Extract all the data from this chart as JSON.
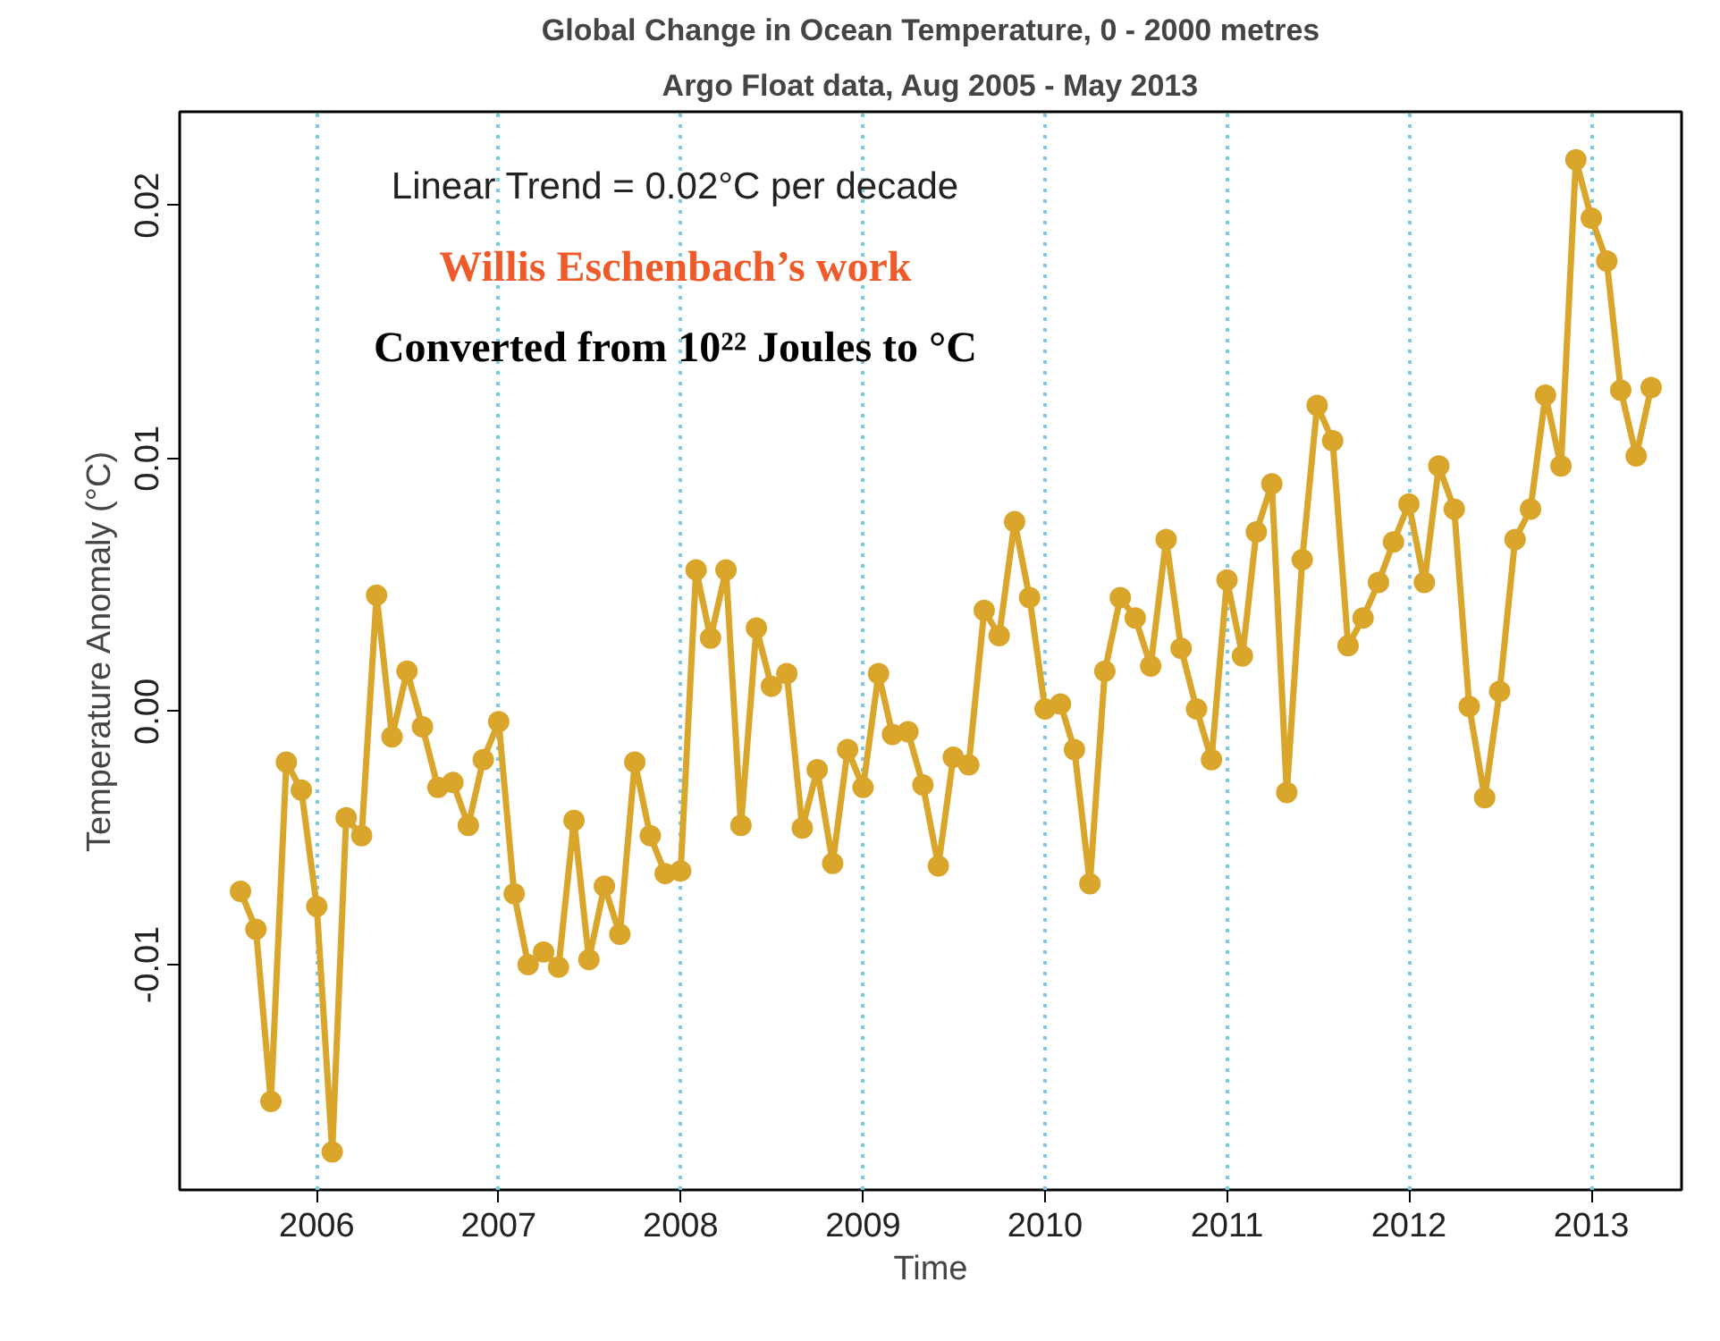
{
  "chart_data": {
    "type": "line",
    "title": "Global Change in Ocean Temperature, 0 - 2000 metres",
    "subtitle": "Argo Float data, Aug 2005 - May 2013",
    "xlabel": "Time",
    "ylabel": "Temperature Anomaly (°C)",
    "annotations": [
      "Linear Trend = 0.02°C per decade",
      "Willis Eschenbach’s work",
      "Converted from 10²² Joules to °C"
    ],
    "x": [
      "2005-08",
      "2005-09",
      "2005-10",
      "2005-11",
      "2005-12",
      "2006-01",
      "2006-02",
      "2006-03",
      "2006-04",
      "2006-05",
      "2006-06",
      "2006-07",
      "2006-08",
      "2006-09",
      "2006-10",
      "2006-11",
      "2006-12",
      "2007-01",
      "2007-02",
      "2007-03",
      "2007-04",
      "2007-05",
      "2007-06",
      "2007-07",
      "2007-08",
      "2007-09",
      "2007-10",
      "2007-11",
      "2007-12",
      "2008-01",
      "2008-02",
      "2008-03",
      "2008-04",
      "2008-05",
      "2008-06",
      "2008-07",
      "2008-08",
      "2008-09",
      "2008-10",
      "2008-11",
      "2008-12",
      "2009-01",
      "2009-02",
      "2009-03",
      "2009-04",
      "2009-05",
      "2009-06",
      "2009-07",
      "2009-08",
      "2009-09",
      "2009-10",
      "2009-11",
      "2009-12",
      "2010-01",
      "2010-02",
      "2010-03",
      "2010-04",
      "2010-05",
      "2010-06",
      "2010-07",
      "2010-08",
      "2010-09",
      "2010-10",
      "2010-11",
      "2010-12",
      "2011-01",
      "2011-02",
      "2011-03",
      "2011-04",
      "2011-05",
      "2011-06",
      "2011-07",
      "2011-08",
      "2011-09",
      "2011-10",
      "2011-11",
      "2011-12",
      "2012-01",
      "2012-02",
      "2012-03",
      "2012-04",
      "2012-05",
      "2012-06",
      "2012-07",
      "2012-08",
      "2012-09",
      "2012-10",
      "2012-11",
      "2012-12",
      "2013-01",
      "2013-02",
      "2013-03",
      "2013-04",
      "2013-05"
    ],
    "series": [
      {
        "color": "#d9a52b",
        "values": [
          -0.0071,
          -0.0086,
          -0.0154,
          -0.002,
          -0.0031,
          -0.0077,
          -0.0174,
          -0.0042,
          -0.0049,
          0.0046,
          -0.001,
          0.0016,
          -0.0006,
          -0.003,
          -0.0028,
          -0.0045,
          -0.0019,
          -0.0004,
          -0.0072,
          -0.01,
          -0.0095,
          -0.0101,
          -0.0043,
          -0.0098,
          -0.0069,
          -0.0088,
          -0.002,
          -0.0049,
          -0.0064,
          -0.0063,
          0.0056,
          0.0029,
          0.0056,
          -0.0045,
          0.0033,
          0.001,
          0.0015,
          -0.0046,
          -0.0023,
          -0.006,
          -0.0015,
          -0.003,
          0.0015,
          -0.0009,
          -0.0008,
          -0.0029,
          -0.0061,
          -0.0018,
          -0.0021,
          0.004,
          0.003,
          0.0075,
          0.0045,
          0.0001,
          0.0003,
          -0.0015,
          -0.0068,
          0.0016,
          0.0045,
          0.0037,
          0.0018,
          0.0068,
          0.0025,
          0.0001,
          -0.0019,
          0.0052,
          0.0022,
          0.0071,
          0.009,
          -0.0032,
          0.006,
          0.0121,
          0.0107,
          0.0026,
          0.0037,
          0.0051,
          0.0067,
          0.0082,
          0.0051,
          0.0097,
          0.008,
          0.0002,
          -0.0034,
          0.0008,
          0.0068,
          0.008,
          0.0125,
          0.0097,
          0.0218,
          0.0195,
          0.0178,
          0.0127,
          0.0101,
          0.0128
        ]
      }
    ],
    "xlim": [
      "2005-04",
      "2013-07"
    ],
    "xticks": [
      {
        "value": "2006-01",
        "label": "2006"
      },
      {
        "value": "2007-01",
        "label": "2007"
      },
      {
        "value": "2008-01",
        "label": "2008"
      },
      {
        "value": "2009-01",
        "label": "2009"
      },
      {
        "value": "2010-01",
        "label": "2010"
      },
      {
        "value": "2011-01",
        "label": "2011"
      },
      {
        "value": "2012-01",
        "label": "2012"
      },
      {
        "value": "2013-01",
        "label": "2013"
      }
    ],
    "ylim": [
      -0.0189,
      0.0237
    ],
    "yticks": [
      -0.01,
      {
        "value": 0,
        "label": "0.00"
      },
      0.01,
      0.02
    ],
    "grid": "x",
    "marker": "circle",
    "line_style": "solid"
  }
}
